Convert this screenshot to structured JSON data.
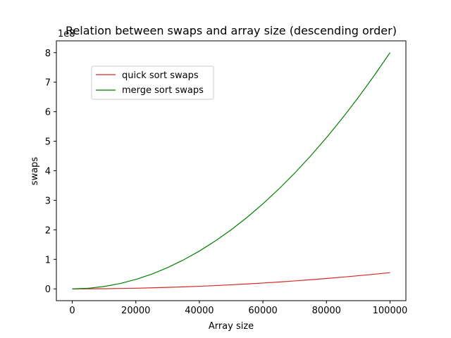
{
  "chart_data": {
    "type": "line",
    "title": "Relation between swaps and array size (descending order)",
    "xlabel": "Array size",
    "ylabel": "swaps",
    "y_scale_label": "1e8",
    "xlim": [
      -5000,
      105000
    ],
    "ylim": [
      -0.4,
      8.4
    ],
    "y_unit_multiplier": 100000000,
    "x_ticks": [
      0,
      20000,
      40000,
      60000,
      80000,
      100000
    ],
    "y_ticks": [
      0,
      1,
      2,
      3,
      4,
      5,
      6,
      7,
      8
    ],
    "grid": false,
    "legend_position": "upper-left",
    "x": [
      0,
      5000,
      10000,
      15000,
      20000,
      25000,
      30000,
      35000,
      40000,
      45000,
      50000,
      55000,
      60000,
      65000,
      70000,
      75000,
      80000,
      85000,
      90000,
      95000,
      100000
    ],
    "series": [
      {
        "name": "quick sort swaps",
        "color": "#d62728",
        "values": [
          0,
          0.0014,
          0.0055,
          0.0124,
          0.022,
          0.0344,
          0.0495,
          0.0674,
          0.088,
          0.1114,
          0.1375,
          0.1664,
          0.198,
          0.2324,
          0.2695,
          0.3094,
          0.352,
          0.3974,
          0.4455,
          0.4964,
          0.55
        ]
      },
      {
        "name": "merge sort swaps",
        "color": "#008000",
        "values": [
          0,
          0.02,
          0.08,
          0.18,
          0.32,
          0.5,
          0.72,
          0.98,
          1.28,
          1.62,
          2.0,
          2.42,
          2.88,
          3.38,
          3.92,
          4.5,
          5.12,
          5.78,
          6.48,
          7.22,
          8.0
        ]
      }
    ]
  }
}
